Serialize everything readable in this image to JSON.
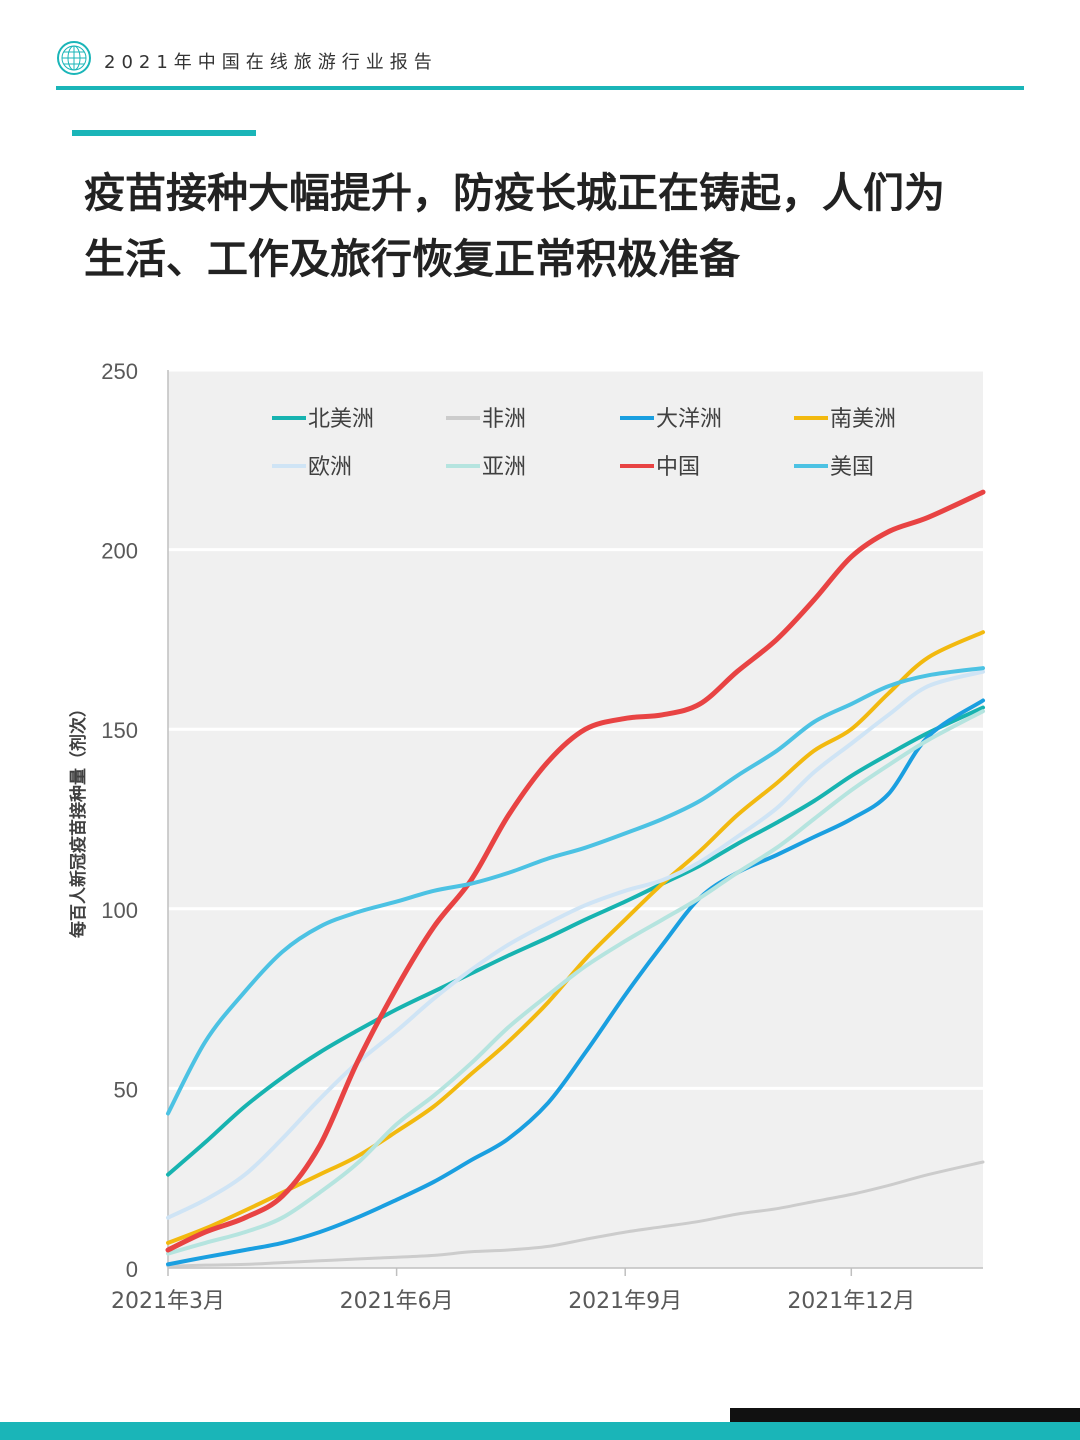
{
  "header": {
    "title": "2021年中国在线旅游行业报告"
  },
  "headline": {
    "line1": "疫苗接种大幅提升，防疫长城正在铸起，人们为",
    "line2": "生活、工作及旅行恢复正常积极准备"
  },
  "colors": {
    "accent": "#1ab5b8",
    "plot_bg": "#f0f0f0"
  },
  "chart_data": {
    "type": "line",
    "ylabel": "每百人新冠疫苗接种量（剂次）",
    "ylim": [
      0,
      250
    ],
    "yticks": [
      0,
      50,
      100,
      150,
      200,
      250
    ],
    "xlim": [
      "2021-03-01",
      "2022-01-23"
    ],
    "xticks": [
      {
        "date": "2021-03-01",
        "label": "2021年3月"
      },
      {
        "date": "2021-06-01",
        "label": "2021年6月"
      },
      {
        "date": "2021-09-01",
        "label": "2021年9月"
      },
      {
        "date": "2021-12-01",
        "label": "2021年12月"
      }
    ],
    "grid": "horizontal",
    "legend_position": "top",
    "x": [
      "2021-03-01",
      "2021-03-16",
      "2021-04-01",
      "2021-04-16",
      "2021-05-01",
      "2021-05-16",
      "2021-06-01",
      "2021-06-16",
      "2021-07-01",
      "2021-07-16",
      "2021-08-01",
      "2021-08-16",
      "2021-09-01",
      "2021-09-16",
      "2021-10-01",
      "2021-10-16",
      "2021-11-01",
      "2021-11-16",
      "2021-12-01",
      "2021-12-16",
      "2022-01-01",
      "2022-01-23"
    ],
    "series": [
      {
        "name": "北美洲",
        "color": "#17b3b0",
        "width": 4,
        "values": [
          26,
          35,
          45,
          53,
          60,
          66,
          72,
          77,
          82,
          87,
          92,
          97,
          102,
          107,
          112,
          118,
          124,
          130,
          137,
          143,
          149,
          156
        ]
      },
      {
        "name": "非洲",
        "color": "#cccccc",
        "width": 3,
        "values": [
          0.5,
          0.8,
          1,
          1.5,
          2,
          2.5,
          3,
          3.5,
          4.5,
          5,
          6,
          8,
          10,
          11.5,
          13,
          15,
          16.5,
          18.5,
          20.5,
          23,
          26,
          29.5
        ]
      },
      {
        "name": "大洋洲",
        "color": "#1a9fe0",
        "width": 4,
        "values": [
          1,
          3,
          5,
          7,
          10,
          14,
          19,
          24,
          30,
          36,
          46,
          60,
          76,
          90,
          103,
          110,
          115,
          120,
          125,
          132,
          148,
          158
        ]
      },
      {
        "name": "南美洲",
        "color": "#f2b90f",
        "width": 4,
        "values": [
          7,
          11,
          16,
          21,
          26,
          31,
          38,
          45,
          54,
          63,
          74,
          86,
          97,
          107,
          116,
          126,
          135,
          144,
          150,
          160,
          170,
          177
        ]
      },
      {
        "name": "欧洲",
        "color": "#cfe4f5",
        "width": 4,
        "values": [
          14,
          19,
          26,
          36,
          47,
          57,
          66,
          75,
          83,
          90,
          96,
          101,
          105,
          108,
          113,
          120,
          128,
          138,
          146,
          154,
          162,
          166
        ]
      },
      {
        "name": "亚洲",
        "color": "#b5e4df",
        "width": 4,
        "values": [
          4,
          7,
          10,
          14,
          21,
          29,
          40,
          48,
          57,
          67,
          76,
          84,
          91,
          97,
          103,
          110,
          117,
          125,
          133,
          140,
          147,
          155
        ]
      },
      {
        "name": "中国",
        "color": "#e84343",
        "width": 5,
        "values": [
          5,
          10,
          14,
          20,
          34,
          57,
          78,
          95,
          108,
          126,
          141,
          150,
          153,
          154,
          157,
          166,
          175,
          186,
          198,
          205,
          209,
          216
        ]
      },
      {
        "name": "美国",
        "color": "#4cc2e3",
        "width": 4,
        "values": [
          43,
          63,
          77,
          88,
          95,
          99,
          102,
          105,
          107,
          110,
          114,
          117,
          121,
          125,
          130,
          137,
          144,
          152,
          157,
          162,
          165,
          167
        ]
      }
    ]
  }
}
